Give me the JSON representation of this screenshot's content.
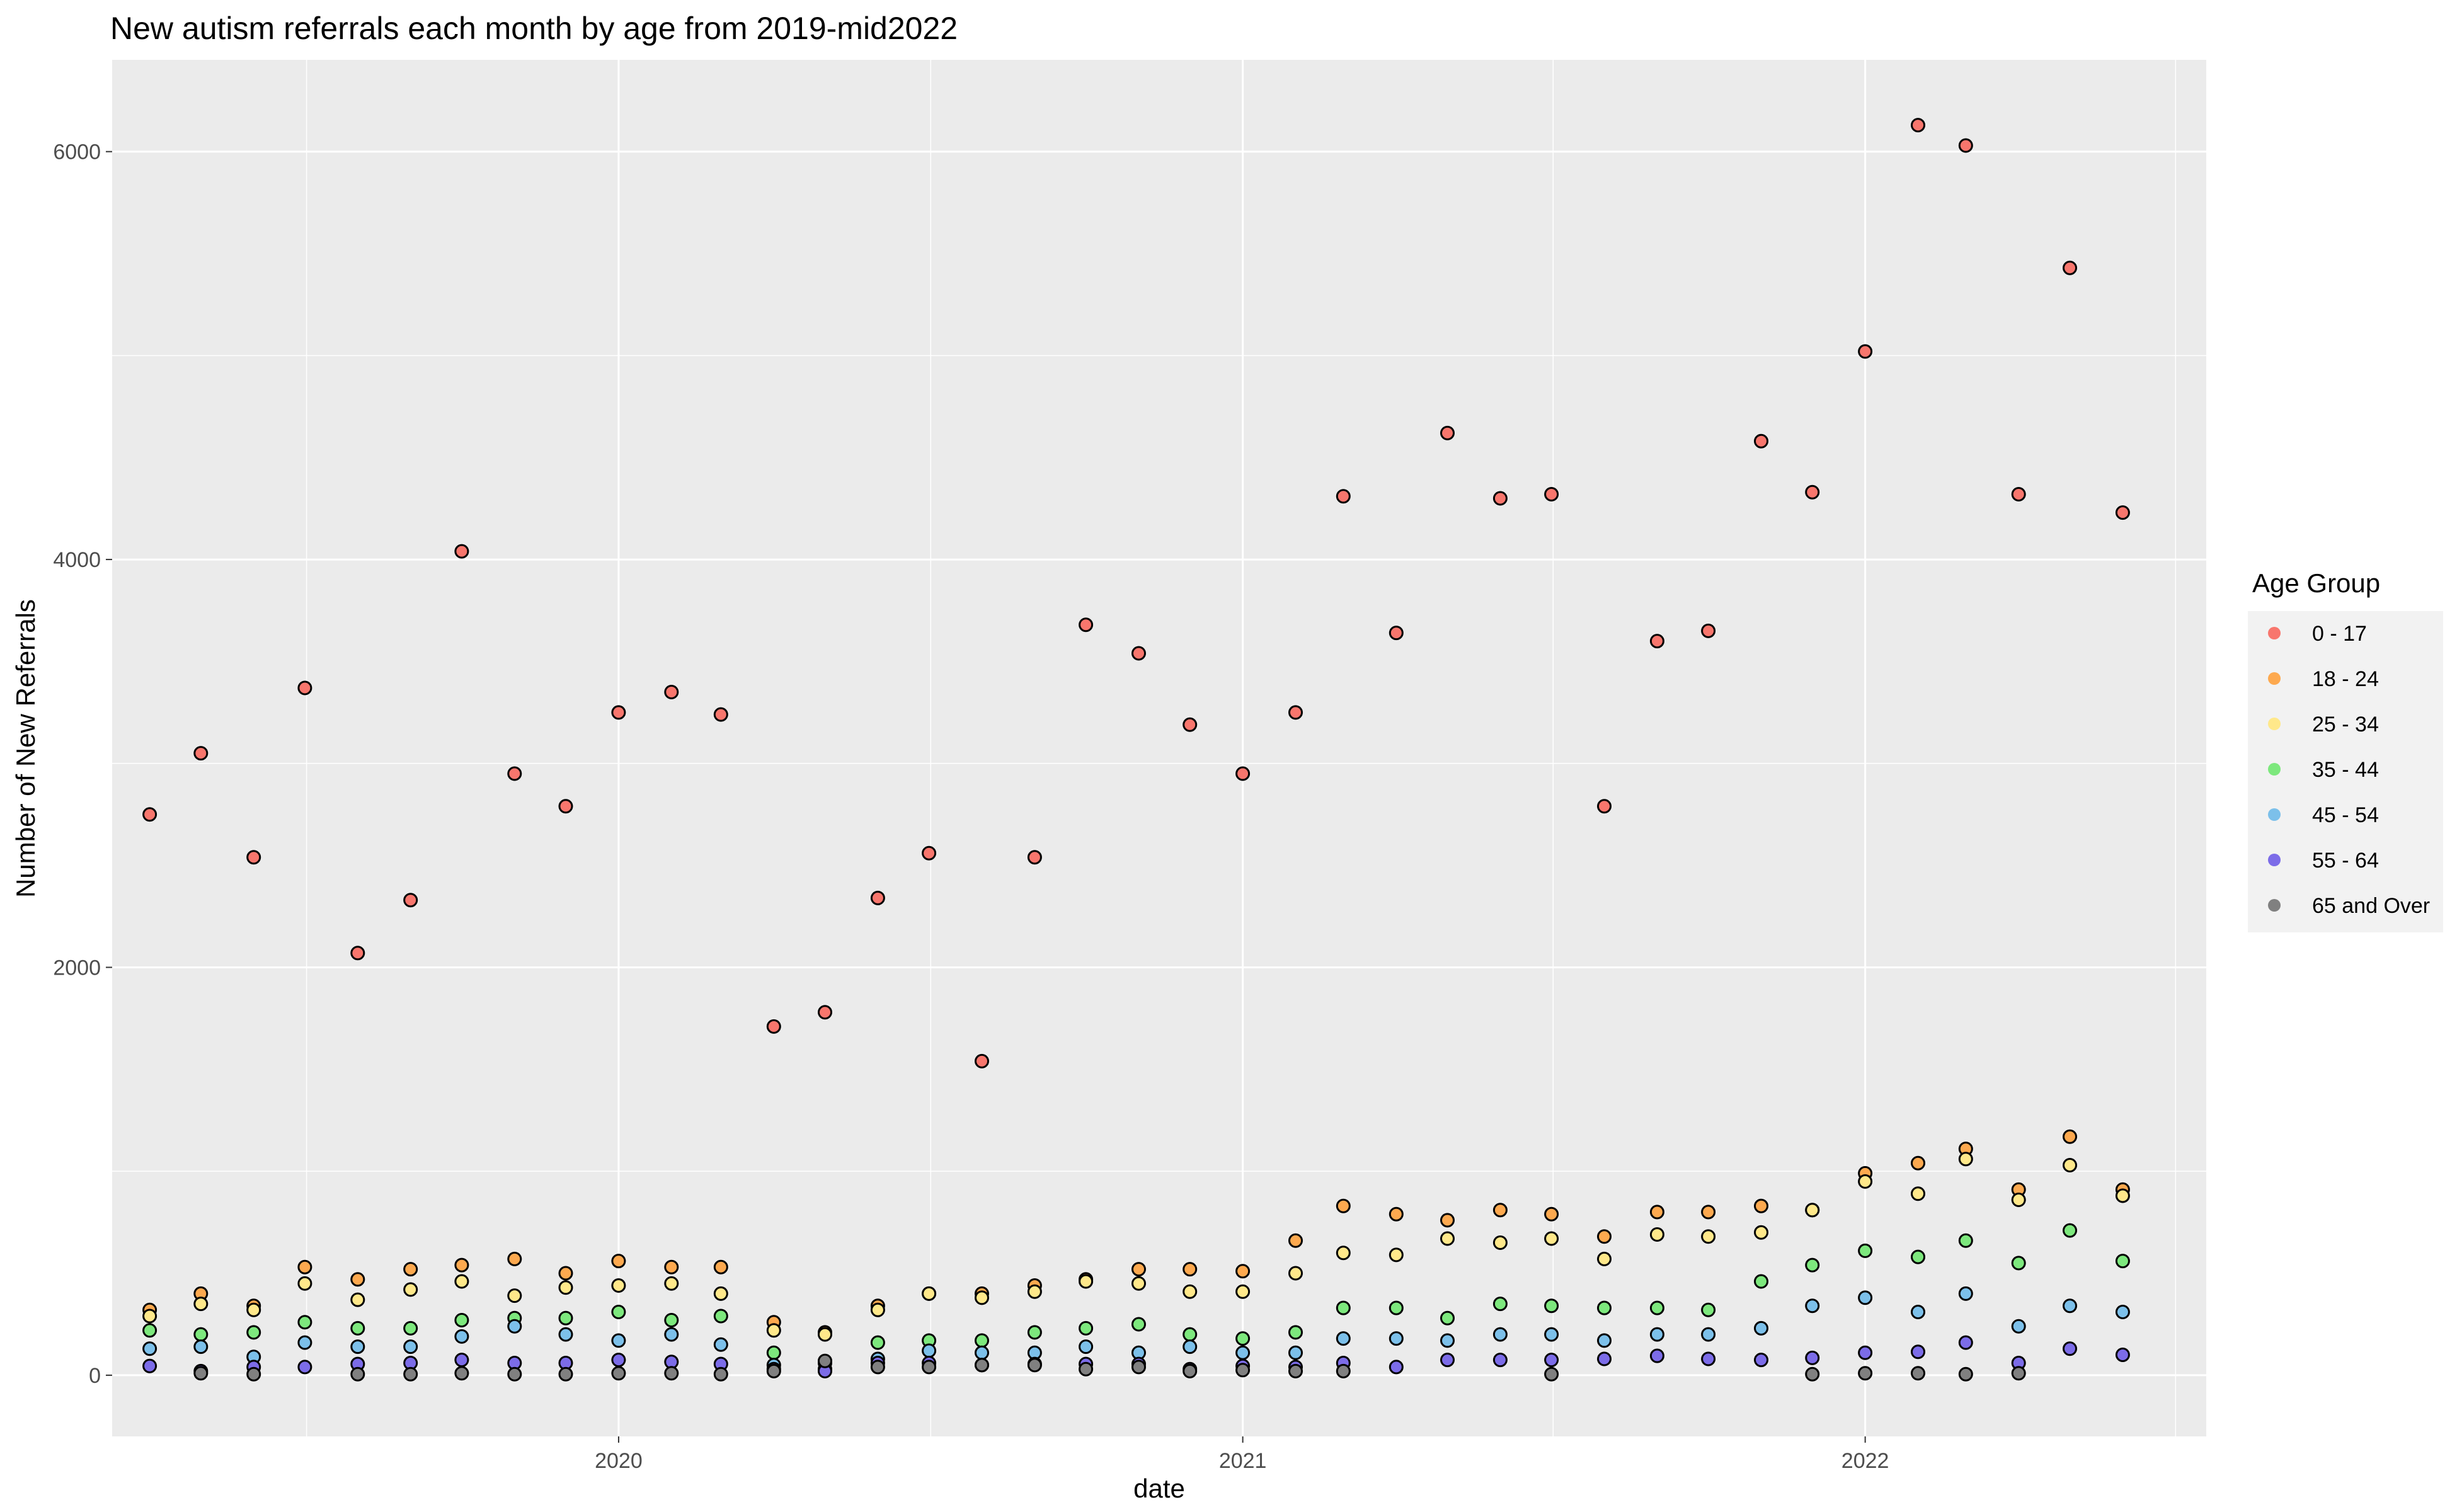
{
  "chart_data": {
    "type": "scatter",
    "title": "New autism referrals each month by age from 2019-mid2022",
    "xlabel": "date",
    "ylabel": "Number of New Referrals",
    "xlim": [
      "2019-03-10",
      "2022-07-20"
    ],
    "ylim": [
      -300,
      6450
    ],
    "x_ticks": [
      "2020-01-01",
      "2021-01-01",
      "2022-01-01"
    ],
    "x_tick_labels": [
      "2020",
      "2021",
      "2022"
    ],
    "y_ticks": [
      0,
      2000,
      4000,
      6000
    ],
    "y_tick_labels": [
      "0",
      "2000",
      "4000",
      "6000"
    ],
    "grid": true,
    "legend": {
      "title": "Age Group",
      "position": "right"
    },
    "dates": [
      "2019-04-01",
      "2019-05-01",
      "2019-06-01",
      "2019-07-01",
      "2019-08-01",
      "2019-09-01",
      "2019-10-01",
      "2019-11-01",
      "2019-12-01",
      "2020-01-01",
      "2020-02-01",
      "2020-03-01",
      "2020-04-01",
      "2020-05-01",
      "2020-06-01",
      "2020-07-01",
      "2020-08-01",
      "2020-09-01",
      "2020-10-01",
      "2020-11-01",
      "2020-12-01",
      "2021-01-01",
      "2021-02-01",
      "2021-03-01",
      "2021-04-01",
      "2021-05-01",
      "2021-06-01",
      "2021-07-01",
      "2021-08-01",
      "2021-09-01",
      "2021-10-01",
      "2021-11-01",
      "2021-12-01",
      "2022-01-01",
      "2022-02-01",
      "2022-03-01",
      "2022-04-01",
      "2022-05-01",
      "2022-06-01"
    ],
    "series": [
      {
        "name": "0 - 17",
        "color": "#F8766D",
        "values": [
          2750,
          3050,
          2540,
          3370,
          2070,
          2330,
          4040,
          2950,
          2790,
          3250,
          3350,
          3240,
          1710,
          1780,
          2340,
          2560,
          1540,
          2540,
          3680,
          3540,
          3190,
          2950,
          3250,
          4310,
          3640,
          4620,
          4300,
          4320,
          2790,
          3600,
          3650,
          4580,
          4330,
          5020,
          6130,
          6030,
          4320,
          5430,
          4230
        ]
      },
      {
        "name": "18 - 24",
        "color": "#FDA94F",
        "values": [
          320,
          400,
          340,
          530,
          470,
          520,
          540,
          570,
          500,
          560,
          530,
          530,
          260,
          210,
          340,
          400,
          400,
          440,
          470,
          520,
          520,
          510,
          660,
          830,
          790,
          760,
          810,
          790,
          680,
          800,
          800,
          830,
          810,
          990,
          1040,
          1110,
          910,
          1170,
          910
        ]
      },
      {
        "name": "25 - 34",
        "color": "#FFE88A",
        "values": [
          290,
          350,
          320,
          450,
          370,
          420,
          460,
          390,
          430,
          440,
          450,
          400,
          220,
          200,
          320,
          400,
          380,
          410,
          460,
          450,
          410,
          410,
          500,
          600,
          590,
          670,
          650,
          670,
          570,
          690,
          680,
          700,
          810,
          950,
          890,
          1060,
          860,
          1030,
          880
        ]
      },
      {
        "name": "35 - 44",
        "color": "#7DE87D",
        "values": [
          220,
          200,
          210,
          260,
          230,
          230,
          270,
          280,
          280,
          310,
          270,
          290,
          110,
          60,
          160,
          170,
          170,
          210,
          230,
          250,
          200,
          180,
          210,
          330,
          330,
          280,
          350,
          340,
          330,
          330,
          320,
          460,
          540,
          610,
          580,
          660,
          550,
          710,
          560
        ]
      },
      {
        "name": "45 - 54",
        "color": "#7CC0EA",
        "values": [
          130,
          140,
          90,
          160,
          140,
          140,
          190,
          240,
          200,
          170,
          200,
          150,
          50,
          30,
          80,
          120,
          110,
          110,
          140,
          110,
          140,
          110,
          110,
          180,
          180,
          170,
          200,
          200,
          170,
          200,
          200,
          230,
          340,
          380,
          310,
          400,
          240,
          340,
          310
        ]
      },
      {
        "name": "55 - 64",
        "color": "#7C6CE8",
        "values": [
          45,
          20,
          40,
          40,
          55,
          60,
          75,
          60,
          60,
          75,
          65,
          55,
          30,
          20,
          60,
          60,
          50,
          55,
          55,
          55,
          30,
          45,
          40,
          60,
          40,
          75,
          75,
          75,
          80,
          95,
          80,
          75,
          85,
          110,
          115,
          160,
          60,
          130,
          100
        ]
      },
      {
        "name": "65 and Over",
        "color": "#808080",
        "values": [
          null,
          10,
          5,
          null,
          5,
          5,
          10,
          5,
          5,
          10,
          10,
          5,
          20,
          70,
          40,
          40,
          50,
          50,
          30,
          40,
          20,
          25,
          20,
          20,
          null,
          null,
          null,
          5,
          null,
          null,
          null,
          null,
          5,
          10,
          10,
          5,
          10,
          null,
          null
        ]
      }
    ]
  }
}
